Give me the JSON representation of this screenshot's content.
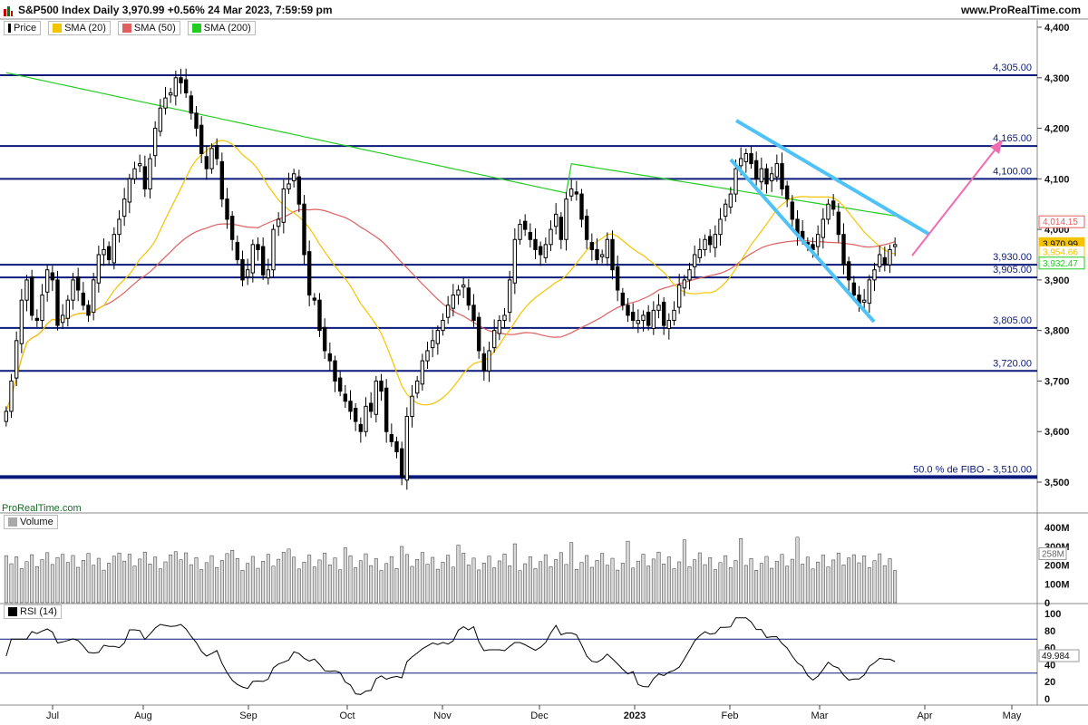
{
  "header": {
    "title": "S&P500 Index Daily 3,970.99 +0.56% 24 Mar 2023, 7:59:59 pm",
    "brand": "www.ProRealTime.com"
  },
  "legend": {
    "items": [
      {
        "label": "Price",
        "color": "#000000"
      },
      {
        "label": "SMA (20)",
        "color": "#f5c400"
      },
      {
        "label": "SMA (50)",
        "color": "#e06060"
      },
      {
        "label": "SMA (200)",
        "color": "#22cc22"
      }
    ]
  },
  "watermark": "ProRealTime.com",
  "volume_panel": {
    "label": "Volume",
    "ticks": [
      "400M",
      "300M",
      "200M",
      "100M",
      "0"
    ],
    "last_value": "258M"
  },
  "rsi_panel": {
    "label": "RSI (14)",
    "ticks": [
      "100",
      "80",
      "60",
      "40",
      "20",
      "0"
    ],
    "last_value": "49.984",
    "levels": [
      70,
      30
    ]
  },
  "colors": {
    "up_candle": "#ffffff",
    "down_candle": "#000000",
    "hline": "#0a1a7a",
    "trendline": "#4fc3f7",
    "arrow": "#f06bb0",
    "sma20": "#f5c400",
    "sma50": "#e06060",
    "sma200": "#22cc22"
  },
  "chart_data": {
    "type": "candlestick",
    "ylim": [
      3480,
      4400
    ],
    "price_ticks": [
      "4,400",
      "4,300",
      "4,200",
      "4,100",
      "4,000",
      "3,900",
      "3,800",
      "3,700",
      "3,600",
      "3,500"
    ],
    "x_labels": [
      "Jul",
      "Aug",
      "Sep",
      "Oct",
      "Nov",
      "Dec",
      "2023",
      "Feb",
      "Mar",
      "Apr",
      "May"
    ],
    "horizontal_levels": [
      {
        "value": 4305,
        "label": "4,305.00"
      },
      {
        "value": 4165,
        "label": "4,165.00"
      },
      {
        "value": 4100,
        "label": "4,100.00"
      },
      {
        "value": 3930,
        "label": "3,930.00"
      },
      {
        "value": 3905,
        "label": "3,905.00"
      },
      {
        "value": 3805,
        "label": "3,805.00"
      },
      {
        "value": 3720,
        "label": "3,720.00"
      },
      {
        "value": 3510,
        "label": "50.0 % de FIBO -  3,510.00"
      }
    ],
    "price_badges": [
      {
        "value": 4014.15,
        "label": "4,014.15",
        "color": "#e06060"
      },
      {
        "value": 3970.99,
        "label": "3,970.99",
        "color": "#f5c400"
      },
      {
        "value": 3954.66,
        "label": "3,954.66",
        "color": "#f5c400"
      },
      {
        "value": 3932.47,
        "label": "3,932.47",
        "color": "#22cc22"
      }
    ],
    "closes": [
      3640,
      3700,
      3780,
      3860,
      3900,
      3830,
      3820,
      3870,
      3920,
      3900,
      3810,
      3830,
      3860,
      3900,
      3880,
      3850,
      3830,
      3900,
      3950,
      3960,
      3940,
      3990,
      4020,
      4060,
      4100,
      4120,
      4130,
      4080,
      4140,
      4200,
      4240,
      4260,
      4270,
      4300,
      4290,
      4270,
      4230,
      4200,
      4150,
      4120,
      4160,
      4140,
      4060,
      4020,
      3980,
      3940,
      3900,
      3920,
      3970,
      3960,
      3910,
      3920,
      4000,
      4020,
      4080,
      4090,
      4110,
      4050,
      3950,
      3870,
      3860,
      3800,
      3760,
      3740,
      3700,
      3680,
      3660,
      3640,
      3620,
      3600,
      3650,
      3640,
      3700,
      3680,
      3600,
      3580,
      3560,
      3510,
      3630,
      3670,
      3700,
      3740,
      3760,
      3780,
      3800,
      3820,
      3850,
      3870,
      3880,
      3890,
      3850,
      3820,
      3760,
      3720,
      3760,
      3800,
      3820,
      3830,
      3900,
      3980,
      4010,
      4000,
      3980,
      3960,
      3950,
      3970,
      4000,
      4030,
      3980,
      4060,
      4080,
      4070,
      4020,
      3980,
      3960,
      3940,
      3950,
      3980,
      3920,
      3880,
      3850,
      3830,
      3820,
      3820,
      3830,
      3810,
      3840,
      3850,
      3810,
      3820,
      3840,
      3890,
      3900,
      3920,
      3950,
      3960,
      3980,
      3970,
      3990,
      4020,
      4050,
      4070,
      4120,
      4140,
      4150,
      4130,
      4100,
      4120,
      4090,
      4110,
      4130,
      4080,
      4060,
      4020,
      3990,
      3980,
      3970,
      3960,
      3990,
      4020,
      4050,
      4040,
      3990,
      3930,
      3900,
      3870,
      3850,
      3860,
      3900,
      3920,
      3950,
      3930,
      3960,
      3970
    ]
  }
}
